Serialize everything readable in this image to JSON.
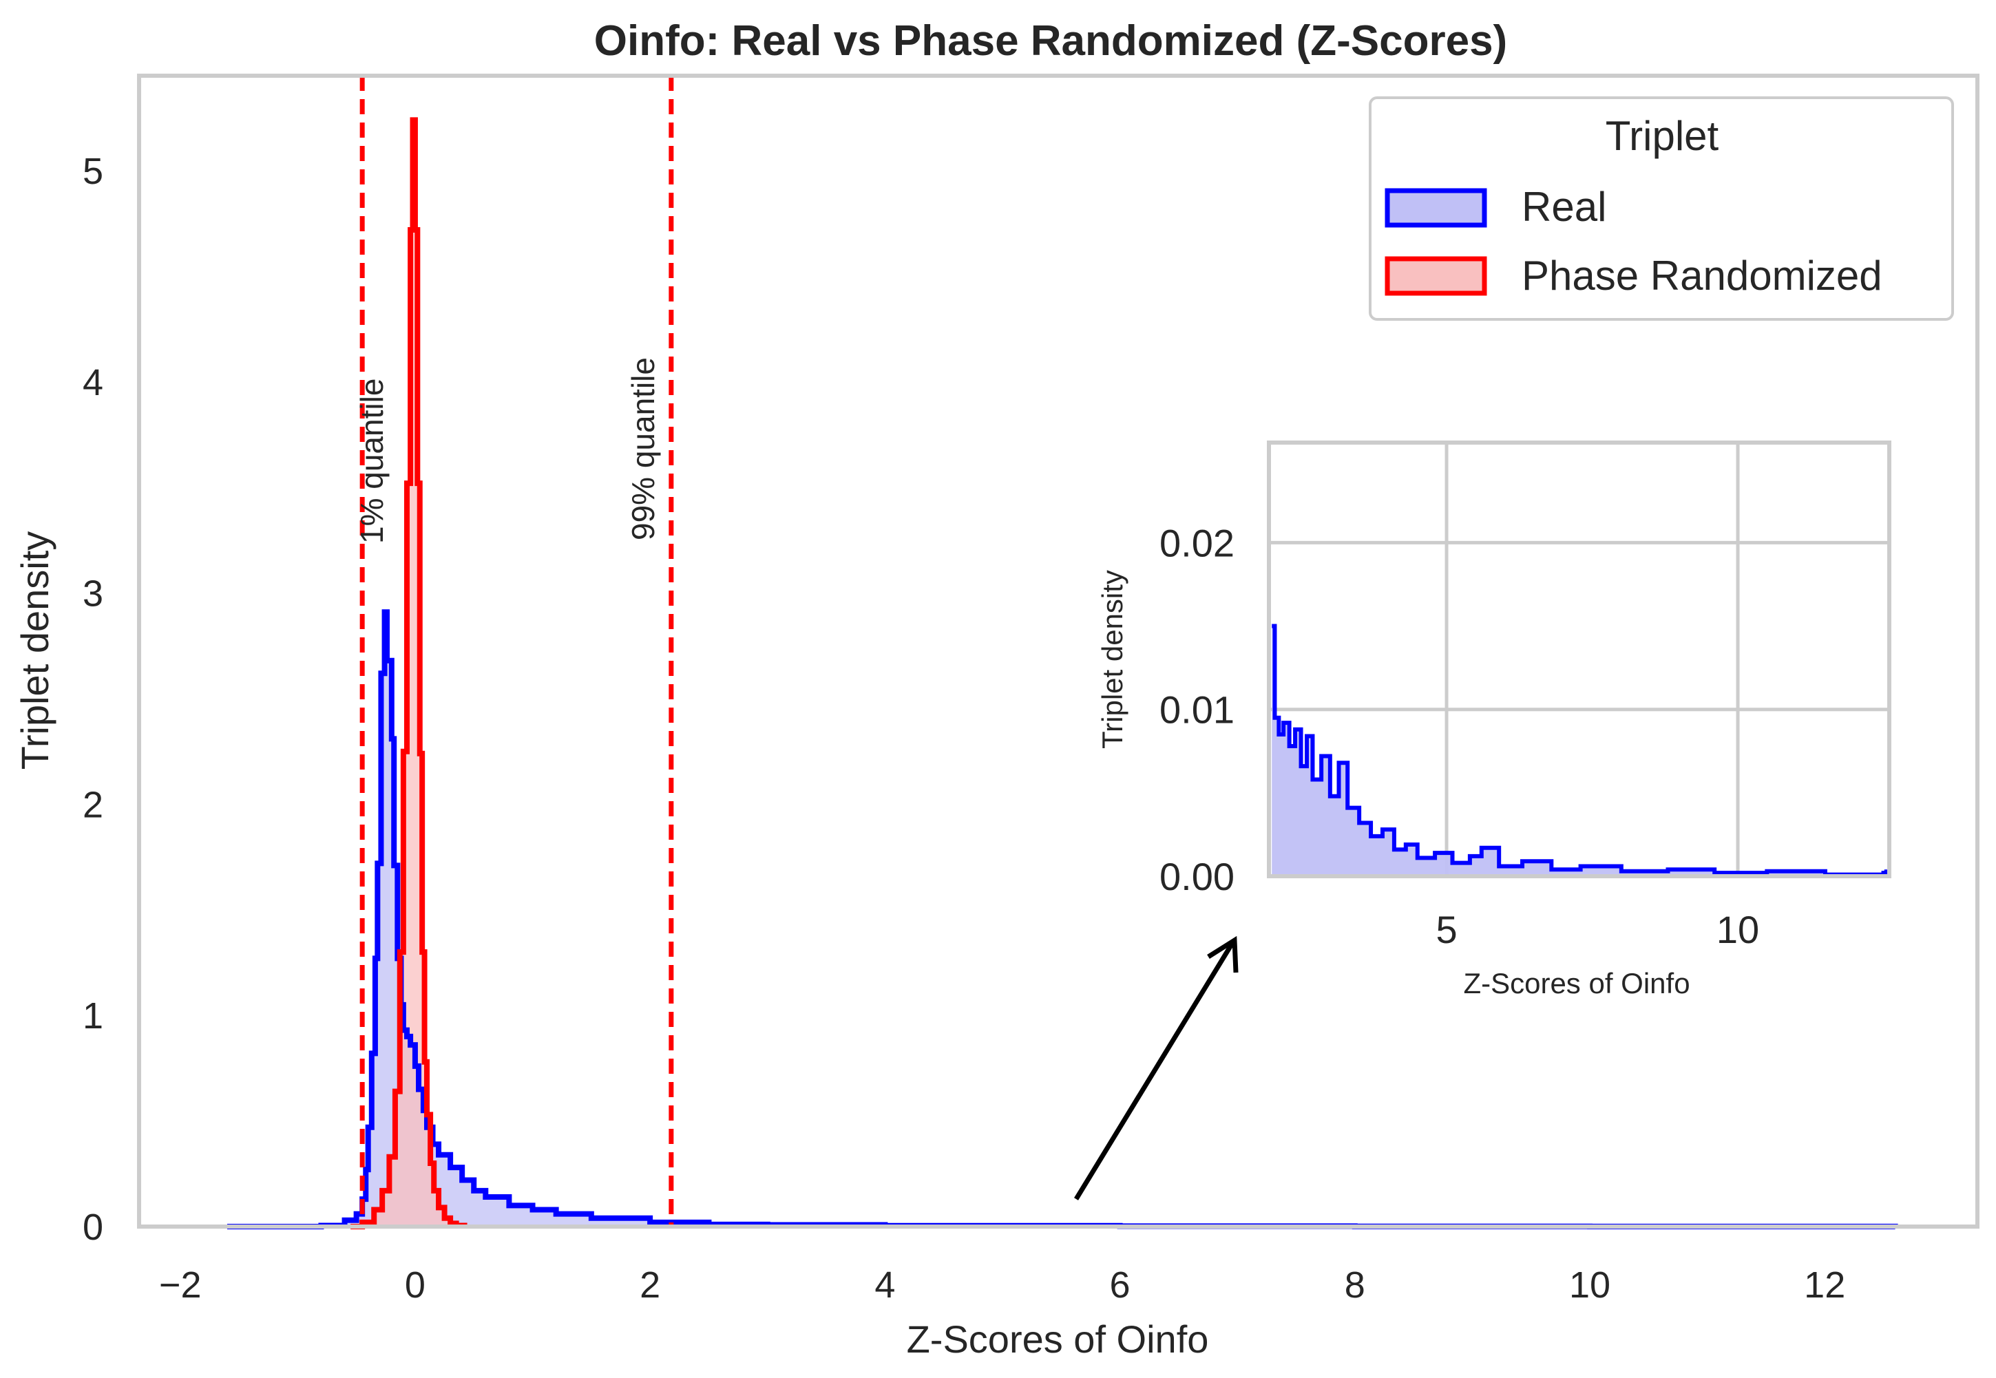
{
  "title": "Oinfo: Real vs Phase Randomized (Z-Scores)",
  "colors": {
    "real_line": "#0000ff",
    "real_fill": "#c0c0f6",
    "phase_line": "#ff0000",
    "phase_fill": "#f9c0c0",
    "quantile_line": "#ff0000",
    "spine": "#cccccc",
    "arrow": "#000000"
  },
  "legend": {
    "title": "Triplet",
    "placement": "top-right",
    "entries": [
      "Real",
      "Phase Randomized"
    ]
  },
  "annotations": {
    "q1": "1% quantile",
    "q99": "99% quantile"
  },
  "chart_data": [
    {
      "type": "area",
      "title": "Oinfo: Real vs Phase Randomized (Z-Scores)",
      "xlabel": "Z-Scores of Oinfo",
      "ylabel": "Triplet density",
      "xlim": [
        -2.35,
        13.3
      ],
      "ylim": [
        0,
        5.45
      ],
      "xticks": [
        -2,
        0,
        2,
        4,
        6,
        8,
        10,
        12
      ],
      "xtick_labels": [
        "−2",
        "0",
        "2",
        "4",
        "6",
        "8",
        "10",
        "12"
      ],
      "yticks": [
        0,
        1,
        2,
        3,
        4,
        5
      ],
      "ytick_labels": [
        "0",
        "1",
        "2",
        "3",
        "4",
        "5"
      ],
      "grid": false,
      "quantile_lines": [
        -0.45,
        2.18
      ],
      "series": [
        {
          "name": "Real",
          "x": [
            -1.6,
            -0.8,
            -0.6,
            -0.5,
            -0.45,
            -0.42,
            -0.4,
            -0.37,
            -0.34,
            -0.32,
            -0.29,
            -0.26,
            -0.24,
            -0.2,
            -0.18,
            -0.15,
            -0.12,
            -0.1,
            -0.07,
            -0.04,
            0.0,
            0.03,
            0.07,
            0.1,
            0.15,
            0.2,
            0.3,
            0.4,
            0.5,
            0.6,
            0.8,
            1.0,
            1.2,
            1.5,
            2.0,
            2.5,
            3.0,
            4.0,
            6.0,
            8.0,
            10.0,
            12.6
          ],
          "values": [
            0.0,
            0.005,
            0.03,
            0.06,
            0.13,
            0.27,
            0.47,
            0.82,
            1.27,
            1.72,
            2.62,
            2.91,
            2.68,
            2.31,
            1.71,
            1.27,
            1.05,
            0.93,
            0.9,
            0.86,
            0.76,
            0.65,
            0.55,
            0.47,
            0.39,
            0.34,
            0.28,
            0.22,
            0.17,
            0.14,
            0.1,
            0.08,
            0.06,
            0.04,
            0.02,
            0.01,
            0.008,
            0.004,
            0.002,
            0.001,
            0.0005,
            0.0
          ]
        },
        {
          "name": "Phase Randomized",
          "x": [
            -0.55,
            -0.45,
            -0.35,
            -0.28,
            -0.22,
            -0.17,
            -0.13,
            -0.1,
            -0.07,
            -0.04,
            -0.02,
            0.0,
            0.02,
            0.04,
            0.06,
            0.08,
            0.1,
            0.13,
            0.16,
            0.2,
            0.25,
            0.3,
            0.35,
            0.42
          ],
          "values": [
            0.0,
            0.02,
            0.08,
            0.17,
            0.33,
            0.64,
            1.3,
            2.25,
            3.52,
            4.72,
            5.24,
            4.72,
            3.52,
            2.24,
            1.3,
            0.78,
            0.53,
            0.3,
            0.17,
            0.09,
            0.04,
            0.015,
            0.005,
            0.0
          ]
        }
      ]
    },
    {
      "type": "area",
      "title": "",
      "xlabel": "Z-Scores of Oinfo",
      "ylabel": "Triplet density",
      "xlim": [
        1.95,
        12.6
      ],
      "ylim": [
        0,
        0.026
      ],
      "xticks": [
        5,
        10
      ],
      "xtick_labels": [
        "5",
        "10"
      ],
      "yticks": [
        0.0,
        0.01,
        0.02
      ],
      "ytick_labels": [
        "0.00",
        "0.01",
        "0.02"
      ],
      "grid": true,
      "series": [
        {
          "name": "Real",
          "x": [
            2.0,
            2.05,
            2.12,
            2.2,
            2.3,
            2.4,
            2.5,
            2.6,
            2.7,
            2.85,
            3.0,
            3.15,
            3.3,
            3.5,
            3.7,
            3.9,
            4.1,
            4.3,
            4.5,
            4.8,
            5.1,
            5.4,
            5.6,
            5.9,
            6.3,
            6.8,
            7.3,
            8.0,
            8.8,
            9.6,
            10.5,
            11.5,
            12.5,
            12.55
          ],
          "values": [
            0.015,
            0.0095,
            0.0085,
            0.0092,
            0.0078,
            0.0088,
            0.0066,
            0.0084,
            0.0058,
            0.0072,
            0.0048,
            0.0068,
            0.0041,
            0.0032,
            0.0024,
            0.0028,
            0.0016,
            0.0019,
            0.0011,
            0.0014,
            0.0008,
            0.0012,
            0.0017,
            0.0006,
            0.0009,
            0.0004,
            0.0006,
            0.0003,
            0.0004,
            0.0002,
            0.0003,
            0.0001,
            0.0002,
            0.0004
          ]
        }
      ]
    }
  ]
}
